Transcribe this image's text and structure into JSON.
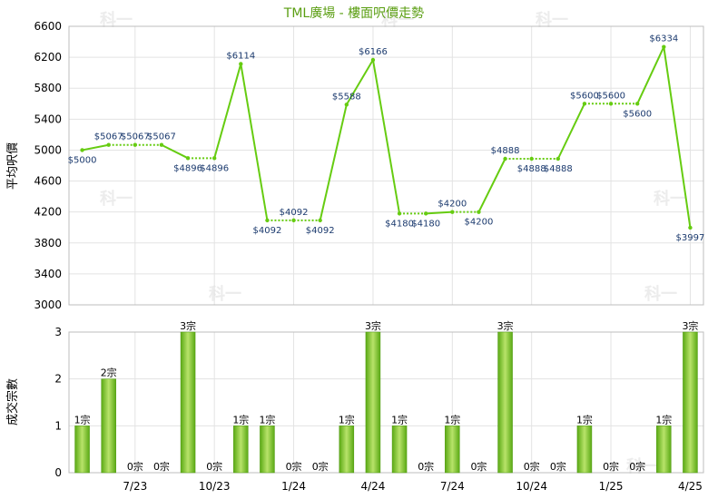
{
  "chart_data": [
    {
      "type": "line",
      "title": "TML廣場 - 樓面呎價走勢",
      "ylabel": "平均呎價",
      "ylim": [
        3000,
        6600
      ],
      "yticks": [
        3000,
        3400,
        3800,
        4200,
        4600,
        5000,
        5400,
        5800,
        6200,
        6600
      ],
      "xtick_labels": [
        "7/23",
        "10/23",
        "1/24",
        "4/24",
        "7/24",
        "10/24",
        "1/25",
        "4/25"
      ],
      "xtick_index": [
        2,
        5,
        8,
        11,
        14,
        17,
        20,
        23
      ],
      "grid": true,
      "line_color": "#66cc11",
      "points": [
        {
          "index": 0,
          "value": 5000,
          "label": "$5000",
          "interpolated": false
        },
        {
          "index": 1,
          "value": 5067,
          "label": "$5067",
          "interpolated": false
        },
        {
          "index": 2,
          "value": 5067,
          "label": "$5067",
          "interpolated": true
        },
        {
          "index": 3,
          "value": 5067,
          "label": "$5067",
          "interpolated": true
        },
        {
          "index": 4,
          "value": 4896,
          "label": "$4896",
          "interpolated": false
        },
        {
          "index": 5,
          "value": 4896,
          "label": "$4896",
          "interpolated": true
        },
        {
          "index": 6,
          "value": 6114,
          "label": "$6114",
          "interpolated": false
        },
        {
          "index": 7,
          "value": 4092,
          "label": "$4092",
          "interpolated": false
        },
        {
          "index": 8,
          "value": 4092,
          "label": "$4092",
          "interpolated": true
        },
        {
          "index": 9,
          "value": 4092,
          "label": "$4092",
          "interpolated": true
        },
        {
          "index": 10,
          "value": 5588,
          "label": "$5588",
          "interpolated": false
        },
        {
          "index": 11,
          "value": 6166,
          "label": "$6166",
          "interpolated": false
        },
        {
          "index": 12,
          "value": 4180,
          "label": "$4180",
          "interpolated": false
        },
        {
          "index": 13,
          "value": 4180,
          "label": "$4180",
          "interpolated": true
        },
        {
          "index": 14,
          "value": 4200,
          "label": "$4200",
          "interpolated": false
        },
        {
          "index": 15,
          "value": 4200,
          "label": "$4200",
          "interpolated": true
        },
        {
          "index": 16,
          "value": 4888,
          "label": "$4888",
          "interpolated": false
        },
        {
          "index": 17,
          "value": 4888,
          "label": "$4888",
          "interpolated": true
        },
        {
          "index": 18,
          "value": 4888,
          "label": "$4888",
          "interpolated": true
        },
        {
          "index": 19,
          "value": 5600,
          "label": "$5600",
          "interpolated": false
        },
        {
          "index": 20,
          "value": 5600,
          "label": "$5600",
          "interpolated": true
        },
        {
          "index": 21,
          "value": 5600,
          "label": "$5600",
          "interpolated": true
        },
        {
          "index": 22,
          "value": 6334,
          "label": "$6334",
          "interpolated": false
        },
        {
          "index": 23,
          "value": 3997,
          "label": "$3997",
          "interpolated": false
        }
      ]
    },
    {
      "type": "bar",
      "ylabel": "成交宗數",
      "ylim": [
        0,
        3
      ],
      "yticks": [
        0,
        1,
        2,
        3
      ],
      "bar_color": "#66bb22",
      "values": [
        1,
        2,
        0,
        0,
        3,
        0,
        1,
        1,
        0,
        0,
        1,
        3,
        1,
        0,
        1,
        0,
        3,
        0,
        0,
        1,
        0,
        0,
        1,
        3
      ],
      "labels": [
        "1宗",
        "2宗",
        "0宗",
        "0宗",
        "3宗",
        "0宗",
        "1宗",
        "1宗",
        "0宗",
        "0宗",
        "1宗",
        "3宗",
        "1宗",
        "0宗",
        "1宗",
        "0宗",
        "3宗",
        "0宗",
        "0宗",
        "1宗",
        "0宗",
        "0宗",
        "1宗",
        "3宗"
      ]
    }
  ]
}
